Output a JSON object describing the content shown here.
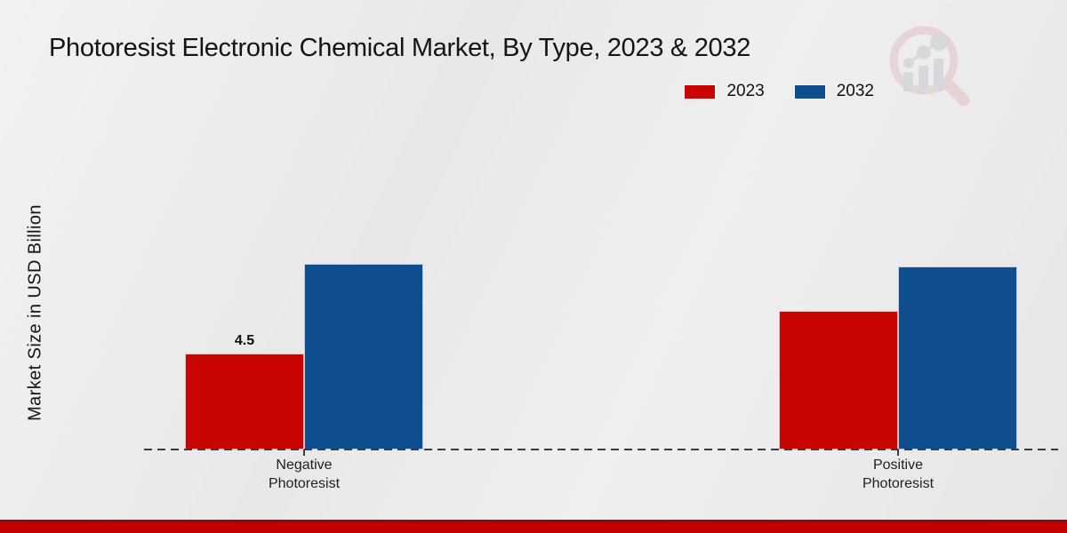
{
  "chart_data": {
    "type": "bar",
    "title": "Photoresist Electronic Chemical Market, By Type, 2023 & 2032",
    "xlabel": "",
    "ylabel": "Market Size in USD Billion",
    "categories": [
      "Negative Photoresist",
      "Positive Photoresist"
    ],
    "series": [
      {
        "name": "2023",
        "color": "#c90504",
        "values": [
          4.5,
          6.5
        ],
        "data_labels": [
          "4.5",
          ""
        ]
      },
      {
        "name": "2032",
        "color": "#0e4d8e",
        "values": [
          8.7,
          8.6
        ],
        "data_labels": [
          "",
          ""
        ]
      }
    ],
    "ylim": [
      0,
      10
    ],
    "grid": false,
    "legend_position": "top-right",
    "baseline_style": "dashed",
    "accent_bottom_bar_color": "#c30200",
    "watermark": "market-research-future-logo"
  }
}
